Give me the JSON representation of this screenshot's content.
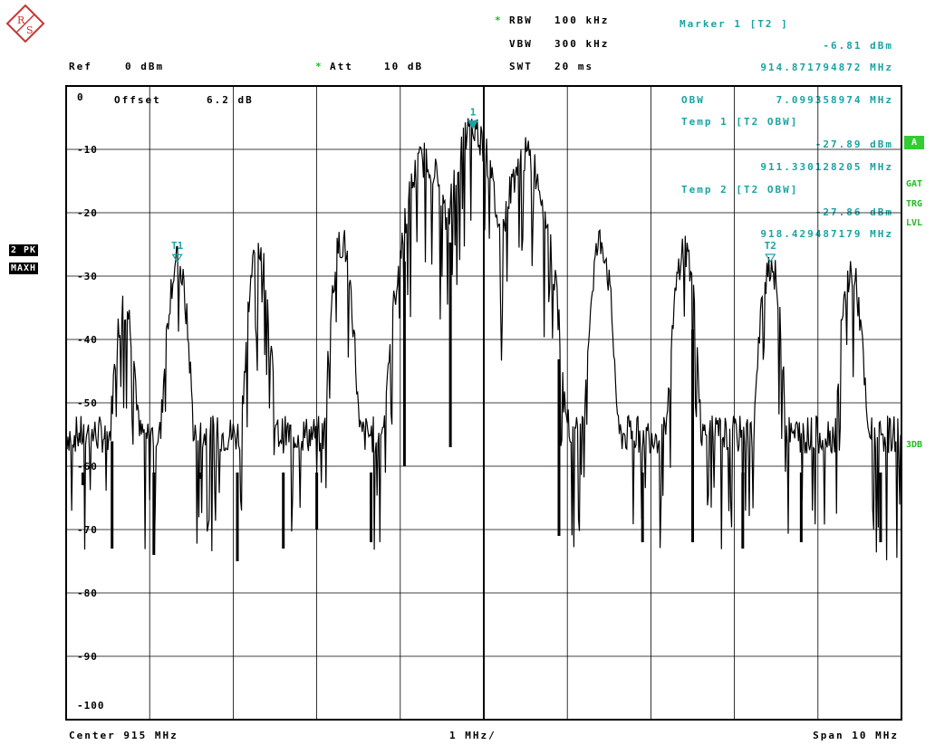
{
  "header": {
    "rbw_star": "*",
    "rbw_label": "RBW",
    "rbw_value": "100 kHz",
    "vbw_label": "VBW",
    "vbw_value": "300 kHz",
    "swt_label": "SWT",
    "swt_value": "20 ms",
    "ref_label": "Ref",
    "ref_value": "0 dBm",
    "att_star": "*",
    "att_label": "Att",
    "att_value": "10 dB",
    "offset_label": "Offset",
    "offset_value": "6.2 dB"
  },
  "marker_panel": {
    "marker1_title": "Marker 1 [T2 ]",
    "marker1_level": "-6.81 dBm",
    "marker1_freq": "914.871794872 MHz",
    "obw_label": "OBW",
    "obw_value": "7.099358974 MHz",
    "temp1_title": "Temp 1 [T2 OBW]",
    "temp1_level": "-27.89 dBm",
    "temp1_freq": "911.330128205 MHz",
    "temp2_title": "Temp 2 [T2 OBW]",
    "temp2_level": "-27.86 dBm",
    "temp2_freq": "918.429487179 MHz"
  },
  "side_labels": {
    "trace_mode": "2 PK",
    "trace_detector": "MAXH",
    "a_badge": "A",
    "gat": "GAT",
    "trg": "TRG",
    "lvl": "LVL",
    "three_db": "3DB"
  },
  "footer": {
    "center": "Center 915 MHz",
    "div": "1 MHz/",
    "span": "Span 10 MHz"
  },
  "colors": {
    "trace": "#000000",
    "grid": "#000000",
    "marker": "#1aa3a3",
    "status": "#22bb22"
  },
  "chart_data": {
    "type": "line",
    "ylim": [
      -100,
      0
    ],
    "xlim": [
      910,
      920
    ],
    "y_tick_labels": [
      "0",
      "-10",
      "-20",
      "-30",
      "-40",
      "-50",
      "-60",
      "-70",
      "-80",
      "-90",
      "-100"
    ],
    "markers": [
      {
        "label": "1",
        "x": 914.87,
        "y": -6.81
      },
      {
        "label": "T1",
        "x": 911.33,
        "y": -27.89
      },
      {
        "label": "T2",
        "x": 918.43,
        "y": -27.86
      }
    ],
    "peaks": [
      {
        "x": 910.7,
        "y": -34.5
      },
      {
        "x": 911.33,
        "y": -28.0
      },
      {
        "x": 912.3,
        "y": -25.5
      },
      {
        "x": 913.3,
        "y": -24.5
      },
      {
        "x": 914.3,
        "y": -11.5
      },
      {
        "x": 914.87,
        "y": -6.8
      },
      {
        "x": 915.5,
        "y": -11.0
      },
      {
        "x": 916.4,
        "y": -24.5
      },
      {
        "x": 917.4,
        "y": -25.5
      },
      {
        "x": 918.43,
        "y": -28.0
      },
      {
        "x": 919.4,
        "y": -29.5
      }
    ],
    "nulls": [
      {
        "x": 910.2,
        "y": -63
      },
      {
        "x": 910.55,
        "y": -73
      },
      {
        "x": 911.05,
        "y": -74
      },
      {
        "x": 911.6,
        "y": -62
      },
      {
        "x": 912.05,
        "y": -75
      },
      {
        "x": 912.6,
        "y": -73
      },
      {
        "x": 913.0,
        "y": -70
      },
      {
        "x": 913.65,
        "y": -72
      },
      {
        "x": 914.05,
        "y": -60
      },
      {
        "x": 914.6,
        "y": -57
      },
      {
        "x": 915.9,
        "y": -71
      },
      {
        "x": 916.9,
        "y": -72
      },
      {
        "x": 917.5,
        "y": -72
      },
      {
        "x": 918.1,
        "y": -73
      },
      {
        "x": 918.8,
        "y": -72
      },
      {
        "x": 919.75,
        "y": -72
      }
    ]
  }
}
